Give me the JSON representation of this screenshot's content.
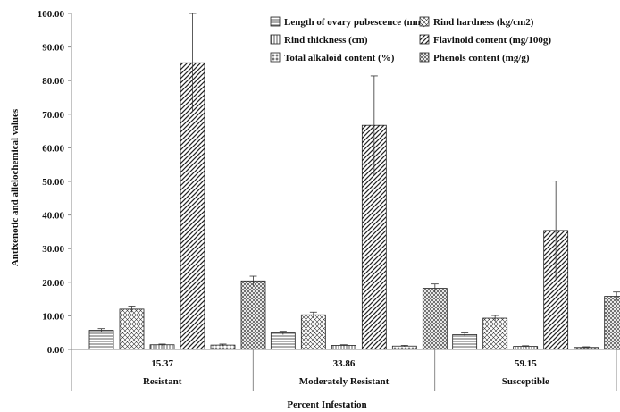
{
  "chart_data": {
    "type": "bar",
    "xlabel": "Percent Infestation",
    "ylabel": "Antixenotic and allelochemical values",
    "ylim": [
      0,
      100
    ],
    "ytick_step": 10,
    "ytick_labels": [
      "0.00",
      "10.00",
      "20.00",
      "30.00",
      "40.00",
      "50.00",
      "60.00",
      "70.00",
      "80.00",
      "90.00",
      "100.00"
    ],
    "categories": [
      "15.37",
      "33.86",
      "59.15"
    ],
    "groups": [
      "Resistant",
      "Moderately Resistant",
      "Susceptible"
    ],
    "legend_position": "top-right",
    "grid": false,
    "series": [
      {
        "name": "Length of ovary pubescence (mm)",
        "pattern": "horizontal",
        "values": [
          5.7,
          4.9,
          4.4
        ],
        "errors": [
          0.5,
          0.5,
          0.5
        ]
      },
      {
        "name": "Rind hardness (kg/cm2)",
        "pattern": "cross",
        "values": [
          12.0,
          10.3,
          9.3
        ],
        "errors": [
          0.9,
          0.8,
          0.8
        ]
      },
      {
        "name": "Rind thickness (cm)",
        "pattern": "vertical",
        "values": [
          1.4,
          1.2,
          0.9
        ],
        "errors": [
          0.2,
          0.2,
          0.2
        ]
      },
      {
        "name": "Flavinoid content (mg/100g)",
        "pattern": "diagonal",
        "values": [
          85.3,
          66.7,
          35.4
        ],
        "errors": [
          14.7,
          14.7,
          14.7
        ]
      },
      {
        "name": "Total alkaloid content (%)",
        "pattern": "plus",
        "values": [
          1.3,
          1.0,
          0.6
        ],
        "errors": [
          0.3,
          0.2,
          0.2
        ]
      },
      {
        "name": "Phenols content (mg/g)",
        "pattern": "crosshatch",
        "values": [
          20.4,
          18.2,
          15.8
        ],
        "errors": [
          1.4,
          1.3,
          1.3
        ]
      }
    ],
    "colors": {
      "bar_fill": "#ffffff",
      "bar_stroke": "#222222",
      "axis": "#888888",
      "pattern": "#333333"
    }
  }
}
